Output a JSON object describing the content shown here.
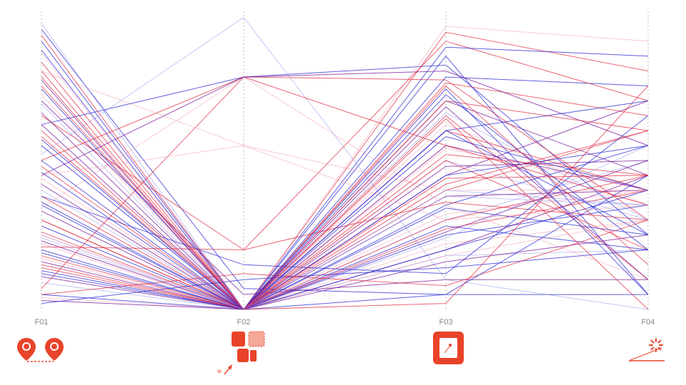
{
  "chart_data": {
    "type": "parallel-coordinates",
    "axes": [
      "F01",
      "F02",
      "F03",
      "F04"
    ],
    "axis_range": [
      0,
      1
    ],
    "grid": false,
    "legend": "none",
    "series_colors": {
      "blue": "#2b2bd6",
      "red": "#e0243a",
      "purple": "#7a1a9a",
      "pink": "#f08aa0",
      "light_blue": "#8e8ef0"
    },
    "lines": [
      {
        "values": [
          0.94,
          0.07,
          0.05,
          0.05
        ],
        "color": "blue"
      },
      {
        "values": [
          0.9,
          0.0,
          0.85,
          0.05
        ],
        "color": "blue"
      },
      {
        "values": [
          0.87,
          0.0,
          0.78,
          0.75
        ],
        "color": "blue"
      },
      {
        "values": [
          0.83,
          0.0,
          0.93,
          0.8
        ],
        "color": "red"
      },
      {
        "values": [
          0.8,
          0.0,
          0.76,
          0.65
        ],
        "color": "red"
      },
      {
        "values": [
          0.77,
          0.0,
          0.7,
          0.45
        ],
        "color": "purple"
      },
      {
        "values": [
          0.75,
          0.0,
          0.6,
          0.4
        ],
        "color": "red"
      },
      {
        "values": [
          0.72,
          0.0,
          0.55,
          0.35
        ],
        "color": "pink"
      },
      {
        "values": [
          0.69,
          0.0,
          0.5,
          0.3
        ],
        "color": "light_blue"
      },
      {
        "values": [
          0.62,
          0.78,
          0.82,
          0.25
        ],
        "color": "blue"
      },
      {
        "values": [
          0.62,
          0.0,
          0.45,
          0.7
        ],
        "color": "purple"
      },
      {
        "values": [
          0.6,
          0.0,
          0.4,
          0.6
        ],
        "color": "red"
      },
      {
        "values": [
          0.57,
          0.0,
          0.35,
          0.55
        ],
        "color": "blue"
      },
      {
        "values": [
          0.55,
          0.0,
          0.3,
          0.5
        ],
        "color": "light_blue"
      },
      {
        "values": [
          0.52,
          0.98,
          0.1,
          0.0
        ],
        "color": "light_blue"
      },
      {
        "values": [
          0.5,
          0.78,
          0.77,
          0.3
        ],
        "color": "red"
      },
      {
        "values": [
          0.48,
          0.0,
          0.27,
          0.4
        ],
        "color": "red"
      },
      {
        "values": [
          0.46,
          0.0,
          0.25,
          0.35
        ],
        "color": "blue"
      },
      {
        "values": [
          0.44,
          0.0,
          0.22,
          0.3
        ],
        "color": "pink"
      },
      {
        "values": [
          0.42,
          0.0,
          0.2,
          0.45
        ],
        "color": "purple"
      },
      {
        "values": [
          0.4,
          0.0,
          0.18,
          0.2
        ],
        "color": "light_blue"
      },
      {
        "values": [
          0.38,
          0.0,
          0.65,
          0.1
        ],
        "color": "red"
      },
      {
        "values": [
          0.35,
          0.0,
          0.6,
          0.25
        ],
        "color": "blue"
      },
      {
        "values": [
          0.34,
          0.78,
          0.35,
          0.1
        ],
        "color": "pink"
      },
      {
        "values": [
          0.33,
          0.0,
          0.55,
          0.4
        ],
        "color": "purple"
      },
      {
        "values": [
          0.3,
          0.0,
          0.5,
          0.2
        ],
        "color": "red"
      },
      {
        "values": [
          0.28,
          0.0,
          0.45,
          0.55
        ],
        "color": "blue"
      },
      {
        "values": [
          0.26,
          0.0,
          0.42,
          0.6
        ],
        "color": "red"
      },
      {
        "values": [
          0.25,
          0.0,
          0.4,
          0.35
        ],
        "color": "light_blue"
      },
      {
        "values": [
          0.23,
          0.0,
          0.38,
          0.4
        ],
        "color": "purple"
      },
      {
        "values": [
          0.21,
          0.2,
          0.36,
          0.3
        ],
        "color": "red"
      },
      {
        "values": [
          0.19,
          0.0,
          0.34,
          0.25
        ],
        "color": "blue"
      },
      {
        "values": [
          0.17,
          0.0,
          0.32,
          0.4
        ],
        "color": "pink"
      },
      {
        "values": [
          0.15,
          0.0,
          0.3,
          0.45
        ],
        "color": "red"
      },
      {
        "values": [
          0.13,
          0.0,
          0.28,
          0.2
        ],
        "color": "blue"
      },
      {
        "values": [
          0.11,
          0.0,
          0.26,
          0.5
        ],
        "color": "purple"
      },
      {
        "values": [
          0.09,
          0.0,
          0.24,
          0.55
        ],
        "color": "light_blue"
      },
      {
        "values": [
          0.07,
          0.78,
          0.55,
          0.35
        ],
        "color": "red"
      },
      {
        "values": [
          0.05,
          0.0,
          0.2,
          0.4
        ],
        "color": "blue"
      },
      {
        "values": [
          0.04,
          0.0,
          0.18,
          0.3
        ],
        "color": "pink"
      },
      {
        "values": [
          0.03,
          0.0,
          0.16,
          0.25
        ],
        "color": "purple"
      },
      {
        "values": [
          0.02,
          0.1,
          0.14,
          0.2
        ],
        "color": "blue"
      },
      {
        "values": [
          0.45,
          0.78,
          0.8,
          0.55
        ],
        "color": "purple"
      },
      {
        "values": [
          0.65,
          0.2,
          0.9,
          0.7
        ],
        "color": "red"
      },
      {
        "values": [
          0.38,
          0.15,
          0.12,
          0.65
        ],
        "color": "blue"
      },
      {
        "values": [
          0.25,
          0.0,
          0.95,
          0.9
        ],
        "color": "pink"
      },
      {
        "values": [
          0.55,
          0.0,
          0.88,
          0.85
        ],
        "color": "blue"
      },
      {
        "values": [
          0.7,
          0.05,
          0.1,
          0.1
        ],
        "color": "purple"
      },
      {
        "values": [
          0.05,
          0.12,
          0.08,
          0.3
        ],
        "color": "red"
      },
      {
        "values": [
          0.5,
          0.0,
          0.05,
          0.45
        ],
        "color": "blue"
      },
      {
        "values": [
          0.3,
          0.0,
          0.02,
          0.75
        ],
        "color": "red"
      },
      {
        "values": [
          0.45,
          0.55,
          0.3,
          0.35
        ],
        "color": "pink"
      },
      {
        "values": [
          0.8,
          0.55,
          0.4,
          0.4
        ],
        "color": "pink"
      },
      {
        "values": [
          0.12,
          0.0,
          0.6,
          0.7
        ],
        "color": "blue"
      },
      {
        "values": [
          0.14,
          0.0,
          0.7,
          0.6
        ],
        "color": "red"
      },
      {
        "values": [
          0.16,
          0.0,
          0.48,
          0.5
        ],
        "color": "purple"
      },
      {
        "values": [
          0.18,
          0.0,
          0.52,
          0.45
        ],
        "color": "red"
      },
      {
        "values": [
          0.2,
          0.0,
          0.58,
          0.4
        ],
        "color": "blue"
      },
      {
        "values": [
          0.22,
          0.0,
          0.62,
          0.35
        ],
        "color": "pink"
      },
      {
        "values": [
          0.24,
          0.0,
          0.66,
          0.3
        ],
        "color": "light_blue"
      },
      {
        "values": [
          0.36,
          0.0,
          0.72,
          0.2
        ],
        "color": "blue"
      },
      {
        "values": [
          0.58,
          0.0,
          0.75,
          0.15
        ],
        "color": "red"
      },
      {
        "values": [
          0.66,
          0.0,
          0.68,
          0.1
        ],
        "color": "purple"
      },
      {
        "values": [
          0.74,
          0.0,
          0.74,
          0.05
        ],
        "color": "blue"
      },
      {
        "values": [
          0.78,
          0.0,
          0.64,
          0.0
        ],
        "color": "red"
      },
      {
        "values": [
          0.86,
          0.0,
          0.54,
          0.4
        ],
        "color": "pink"
      },
      {
        "values": [
          0.92,
          0.0,
          0.44,
          0.45
        ],
        "color": "red"
      },
      {
        "values": [
          0.96,
          0.0,
          0.38,
          0.35
        ],
        "color": "light_blue"
      }
    ]
  },
  "bottom_icons": {
    "f01": {
      "name": "map-pins-distance-icon"
    },
    "f02": {
      "name": "tiles-width-icon",
      "caption": "w"
    },
    "f03": {
      "name": "square-dot-icon"
    },
    "f04": {
      "name": "spinner-slope-icon"
    }
  }
}
